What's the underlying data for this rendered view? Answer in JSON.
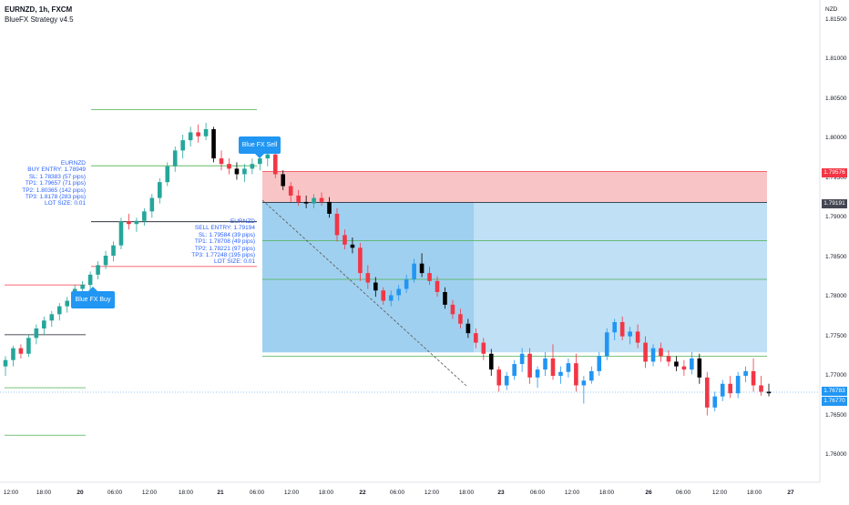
{
  "header": {
    "symbol_line": "EURNZD, 1h, FXCM",
    "strategy_line": "BlueFX Strategy v4.5"
  },
  "currency_label": "NZD",
  "y_axis": {
    "ticks": [
      "1.81500",
      "1.81000",
      "1.80500",
      "1.80000",
      "1.79500",
      "1.79000",
      "1.78500",
      "1.78000",
      "1.77500",
      "1.77000",
      "1.76500",
      "1.76000"
    ]
  },
  "x_axis": {
    "ticks": [
      "12:00",
      "18:00",
      "20",
      "06:00",
      "12:00",
      "18:00",
      "21",
      "06:00",
      "12:00",
      "18:00",
      "22",
      "06:00",
      "12:00",
      "18:00",
      "23",
      "06:00",
      "12:00",
      "18:00",
      "26",
      "06:00",
      "12:00",
      "18:00",
      "27"
    ]
  },
  "price_tags": {
    "stop": {
      "label": "1.79576",
      "color": "#f23645"
    },
    "entry": {
      "label": "1.79191",
      "color": "#434651"
    },
    "last": {
      "label": "1.76783",
      "color": "#2196f3"
    },
    "last2": {
      "label": "1.76770",
      "color": "#2196f3"
    }
  },
  "buy_signal": {
    "label": "Blue FX Buy",
    "lines": [
      "EURNZD",
      "BUY ENTRY: 1.78949",
      "SL: 1.78383 (57 pips)",
      "TP1: 1.79657 (71 pips)",
      "TP2: 1.80365 (142 pips)",
      "TP3: 1.8178 (283 pips)",
      "LOT SIZE: 0.01"
    ]
  },
  "sell_signal": {
    "label": "Blue FX Sell",
    "lines": [
      "EURNZD",
      "SELL ENTRY: 1.79194",
      "SL: 1.79584 (39 pips)",
      "TP1: 1.78708 (49 pips)",
      "TP2: 1.78221 (97 pips)",
      "TP3: 1.77248 (195 pips)",
      "LOT SIZE: 0.01"
    ]
  },
  "colors": {
    "bull": "#26a69a",
    "bull_highlight": "#2196f3",
    "bear": "#f23645",
    "bear_dark": "#000000",
    "stop_zone": "#f8c4c6",
    "profit_zone": "#bfe0f5",
    "profit_zone_dark": "#93c9ec",
    "tp_line": "#4caf50",
    "sl_line": "#f23645",
    "entry_line": "#131722"
  },
  "chart_data": {
    "type": "candlestick",
    "symbol": "EURNZD",
    "timeframe": "1h",
    "ylim": [
      1.757,
      1.819
    ],
    "candles": [
      [
        1.7712,
        1.7725,
        1.77,
        1.772
      ],
      [
        1.772,
        1.7738,
        1.7712,
        1.7735
      ],
      [
        1.7735,
        1.774,
        1.7722,
        1.7728
      ],
      [
        1.7728,
        1.7752,
        1.7724,
        1.7748
      ],
      [
        1.7748,
        1.7765,
        1.774,
        1.776
      ],
      [
        1.776,
        1.7775,
        1.7752,
        1.777
      ],
      [
        1.777,
        1.7782,
        1.7762,
        1.7778
      ],
      [
        1.7778,
        1.7792,
        1.777,
        1.7788
      ],
      [
        1.7788,
        1.78,
        1.778,
        1.7795
      ],
      [
        1.7795,
        1.7815,
        1.779,
        1.781
      ],
      [
        1.781,
        1.782,
        1.7802,
        1.7815
      ],
      [
        1.7815,
        1.7832,
        1.7808,
        1.7828
      ],
      [
        1.7828,
        1.7845,
        1.7822,
        1.784
      ],
      [
        1.784,
        1.7858,
        1.7835,
        1.7852
      ],
      [
        1.7852,
        1.787,
        1.7845,
        1.7865
      ],
      [
        1.7865,
        1.79,
        1.786,
        1.7895
      ],
      [
        1.7895,
        1.7905,
        1.7885,
        1.7892
      ],
      [
        1.7892,
        1.79,
        1.7882,
        1.7896
      ],
      [
        1.7896,
        1.7912,
        1.789,
        1.7908
      ],
      [
        1.7908,
        1.793,
        1.79,
        1.7925
      ],
      [
        1.7925,
        1.795,
        1.7918,
        1.7945
      ],
      [
        1.7945,
        1.797,
        1.794,
        1.7965
      ],
      [
        1.7965,
        1.799,
        1.7958,
        1.7985
      ],
      [
        1.7985,
        1.8005,
        1.7975,
        1.7998
      ],
      [
        1.7998,
        1.8015,
        1.799,
        1.8008
      ],
      [
        1.8008,
        1.8018,
        1.7995,
        1.8003
      ],
      [
        1.8003,
        1.802,
        1.7998,
        1.8012
      ],
      [
        1.8012,
        1.8015,
        1.797,
        1.7975
      ],
      [
        1.7975,
        1.7985,
        1.796,
        1.7968
      ],
      [
        1.7968,
        1.7975,
        1.7955,
        1.7962
      ],
      [
        1.7962,
        1.797,
        1.7948,
        1.7955
      ],
      [
        1.7955,
        1.7968,
        1.7945,
        1.7962
      ],
      [
        1.7962,
        1.7975,
        1.7955,
        1.7968
      ],
      [
        1.7968,
        1.7982,
        1.796,
        1.7975
      ],
      [
        1.7975,
        1.7985,
        1.7965,
        1.798
      ],
      [
        1.798,
        1.7986,
        1.795,
        1.7955
      ],
      [
        1.7955,
        1.796,
        1.7935,
        1.794
      ],
      [
        1.794,
        1.7945,
        1.792,
        1.7928
      ],
      [
        1.7928,
        1.7935,
        1.7915,
        1.792
      ],
      [
        1.792,
        1.7928,
        1.7912,
        1.7918
      ],
      [
        1.7918,
        1.793,
        1.7912,
        1.7925
      ],
      [
        1.7925,
        1.7932,
        1.7915,
        1.792
      ],
      [
        1.792,
        1.7926,
        1.79,
        1.7905
      ],
      [
        1.7905,
        1.7912,
        1.787,
        1.7878
      ],
      [
        1.7878,
        1.7885,
        1.786,
        1.7866
      ],
      [
        1.7866,
        1.7875,
        1.7855,
        1.7862
      ],
      [
        1.7862,
        1.7868,
        1.782,
        1.783
      ],
      [
        1.783,
        1.784,
        1.781,
        1.7818
      ],
      [
        1.7818,
        1.7825,
        1.78,
        1.7808
      ],
      [
        1.7808,
        1.7812,
        1.779,
        1.7795
      ],
      [
        1.7795,
        1.7808,
        1.7788,
        1.7802
      ],
      [
        1.7802,
        1.7815,
        1.7795,
        1.781
      ],
      [
        1.781,
        1.7828,
        1.7805,
        1.7822
      ],
      [
        1.7822,
        1.7848,
        1.7818,
        1.7842
      ],
      [
        1.7842,
        1.7855,
        1.7825,
        1.783
      ],
      [
        1.783,
        1.7838,
        1.7815,
        1.782
      ],
      [
        1.782,
        1.7826,
        1.78,
        1.7806
      ],
      [
        1.7806,
        1.7812,
        1.7785,
        1.779
      ],
      [
        1.779,
        1.7796,
        1.7772,
        1.7778
      ],
      [
        1.7778,
        1.7785,
        1.776,
        1.7766
      ],
      [
        1.7766,
        1.7772,
        1.7748,
        1.7754
      ],
      [
        1.7754,
        1.776,
        1.7735,
        1.7742
      ],
      [
        1.7742,
        1.7748,
        1.772,
        1.7728
      ],
      [
        1.7728,
        1.7734,
        1.77,
        1.7708
      ],
      [
        1.7708,
        1.7712,
        1.768,
        1.7688
      ],
      [
        1.7688,
        1.7705,
        1.7682,
        1.77
      ],
      [
        1.77,
        1.772,
        1.7695,
        1.7715
      ],
      [
        1.7715,
        1.7735,
        1.7705,
        1.7728
      ],
      [
        1.7728,
        1.7735,
        1.769,
        1.7698
      ],
      [
        1.7698,
        1.7712,
        1.7685,
        1.7708
      ],
      [
        1.7708,
        1.773,
        1.77,
        1.7722
      ],
      [
        1.7722,
        1.774,
        1.7695,
        1.77
      ],
      [
        1.77,
        1.7712,
        1.769,
        1.7705
      ],
      [
        1.7705,
        1.7722,
        1.7698,
        1.7716
      ],
      [
        1.7716,
        1.7728,
        1.768,
        1.7688
      ],
      [
        1.7688,
        1.77,
        1.7665,
        1.7694
      ],
      [
        1.7694,
        1.7712,
        1.769,
        1.7706
      ],
      [
        1.7706,
        1.773,
        1.77,
        1.7725
      ],
      [
        1.7725,
        1.776,
        1.772,
        1.7755
      ],
      [
        1.7755,
        1.7772,
        1.7745,
        1.7768
      ],
      [
        1.7768,
        1.7775,
        1.7745,
        1.775
      ],
      [
        1.775,
        1.7762,
        1.774,
        1.7756
      ],
      [
        1.7756,
        1.7765,
        1.7735,
        1.7742
      ],
      [
        1.7742,
        1.775,
        1.771,
        1.7718
      ],
      [
        1.7718,
        1.774,
        1.7712,
        1.7735
      ],
      [
        1.7735,
        1.7742,
        1.7718,
        1.7725
      ],
      [
        1.7725,
        1.7732,
        1.7712,
        1.7718
      ],
      [
        1.7718,
        1.7725,
        1.7706,
        1.7712
      ],
      [
        1.7712,
        1.772,
        1.77,
        1.7708
      ],
      [
        1.7708,
        1.773,
        1.7702,
        1.7722
      ],
      [
        1.7722,
        1.7728,
        1.769,
        1.7698
      ],
      [
        1.7698,
        1.7705,
        1.765,
        1.766
      ],
      [
        1.766,
        1.768,
        1.7655,
        1.7674
      ],
      [
        1.7674,
        1.7695,
        1.7668,
        1.769
      ],
      [
        1.769,
        1.77,
        1.7672,
        1.7678
      ],
      [
        1.7678,
        1.7705,
        1.7672,
        1.77
      ],
      [
        1.77,
        1.7712,
        1.7692,
        1.7706
      ],
      [
        1.7706,
        1.7722,
        1.768,
        1.7688
      ],
      [
        1.7688,
        1.77,
        1.7675,
        1.768
      ],
      [
        1.768,
        1.769,
        1.7674,
        1.7678
      ]
    ],
    "position_long": {
      "entry": 1.78949,
      "sl": 1.78383,
      "tp1": 1.79657,
      "tp2": 1.80365,
      "tp3": 1.8178
    },
    "position_short": {
      "entry": 1.79194,
      "sl": 1.79584,
      "tp1": 1.78708,
      "tp2": 1.78221,
      "tp3": 1.77248
    }
  }
}
